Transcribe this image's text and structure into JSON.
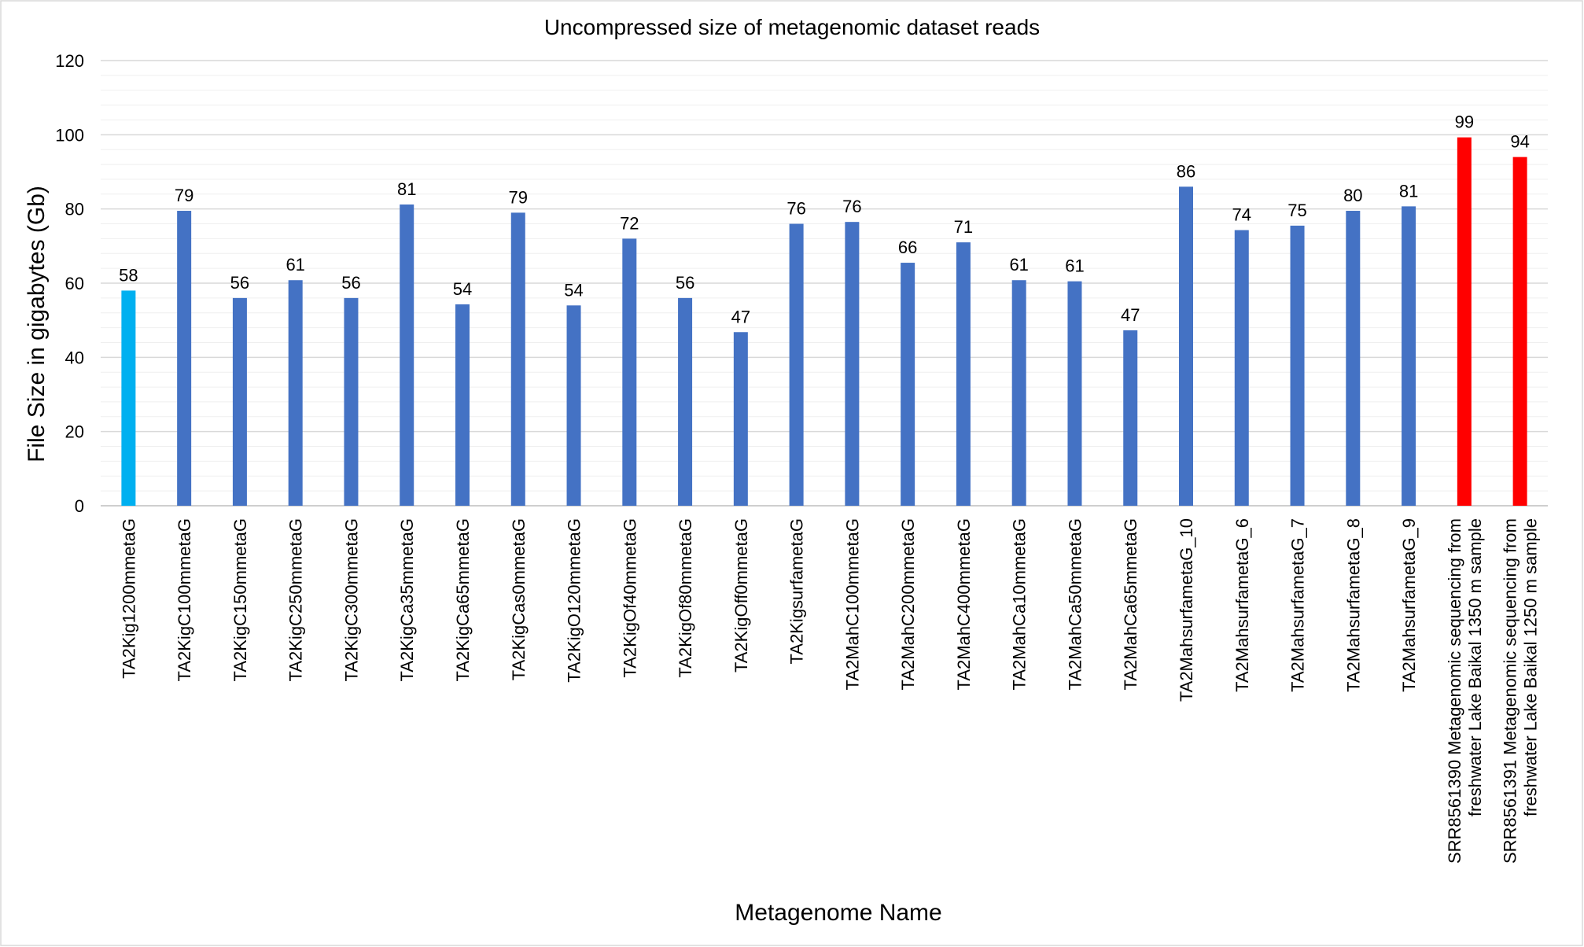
{
  "chart_data": {
    "type": "bar",
    "title": "Uncompressed size of metagenomic dataset reads",
    "xlabel": "Metagenome Name",
    "ylabel": "File Size in gigabytes (Gb)",
    "ylim": [
      0,
      120
    ],
    "yticks": [
      0,
      20,
      40,
      60,
      80,
      100,
      120
    ],
    "grid": true,
    "legend": "none",
    "categories": [
      [
        "TA2Kig1200mmetaG"
      ],
      [
        "TA2KigC100mmetaG"
      ],
      [
        "TA2KigC150mmetaG"
      ],
      [
        "TA2KigC250mmetaG"
      ],
      [
        "TA2KigC300mmetaG"
      ],
      [
        "TA2KigCa35mmetaG"
      ],
      [
        "TA2KigCa65mmetaG"
      ],
      [
        "TA2KigCas0mmetaG"
      ],
      [
        "TA2KigO120mmetaG"
      ],
      [
        "TA2KigOf40mmetaG"
      ],
      [
        "TA2KigOf80mmetaG"
      ],
      [
        "TA2KigOff0mmetaG"
      ],
      [
        "TA2KigsurfametaG"
      ],
      [
        "TA2MahC100mmetaG"
      ],
      [
        "TA2MahC200mmetaG"
      ],
      [
        "TA2MahC400mmetaG"
      ],
      [
        "TA2MahCa10mmetaG"
      ],
      [
        "TA2MahCa50mmetaG"
      ],
      [
        "TA2MahCa65mmetaG"
      ],
      [
        "TA2MahsurfametaG_10"
      ],
      [
        "TA2MahsurfametaG_6"
      ],
      [
        "TA2MahsurfametaG_7"
      ],
      [
        "TA2MahsurfametaG_8"
      ],
      [
        "TA2MahsurfametaG_9"
      ],
      [
        "SRR8561390 Metagenomic sequencing from",
        "freshwater Lake Baikal 1350 m sample"
      ],
      [
        "SRR8561391 Metagenomic sequencing from",
        "freshwater Lake Baikal 1250 m sample"
      ]
    ],
    "values": [
      58,
      79.5,
      56,
      60.8,
      56,
      81.2,
      54.3,
      79,
      54,
      72,
      56,
      46.8,
      76,
      76.5,
      65.5,
      71,
      60.8,
      60.5,
      47.3,
      86,
      74.3,
      75.5,
      79.5,
      80.7,
      99.3,
      94
    ],
    "labels": [
      "58",
      "79",
      "56",
      "61",
      "56",
      "81",
      "54",
      "79",
      "54",
      "72",
      "56",
      "47",
      "76",
      "76",
      "66",
      "71",
      "61",
      "61",
      "47",
      "86",
      "74",
      "75",
      "80",
      "81",
      "99",
      "94"
    ],
    "colors": [
      "#00B0F0",
      "#4472C4",
      "#4472C4",
      "#4472C4",
      "#4472C4",
      "#4472C4",
      "#4472C4",
      "#4472C4",
      "#4472C4",
      "#4472C4",
      "#4472C4",
      "#4472C4",
      "#4472C4",
      "#4472C4",
      "#4472C4",
      "#4472C4",
      "#4472C4",
      "#4472C4",
      "#4472C4",
      "#4472C4",
      "#4472C4",
      "#4472C4",
      "#4472C4",
      "#4472C4",
      "#FF0000",
      "#FF0000"
    ]
  }
}
